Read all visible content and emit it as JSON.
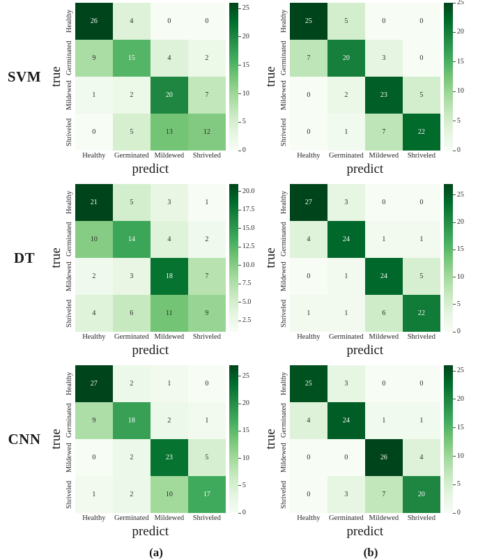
{
  "figure_background": "#ffffff",
  "row_labels": [
    "SVM",
    "DT",
    "CNN"
  ],
  "captions": [
    "(a)",
    "(b)"
  ],
  "axis": {
    "xlabel": "predict",
    "ylabel": "true"
  },
  "categories": [
    "Healthy",
    "Germinated",
    "Mildewed",
    "Shriveled"
  ],
  "colormap": {
    "name": "Greens",
    "stops": [
      "#f7fcf5",
      "#e5f5e0",
      "#c7e9c0",
      "#a1d99b",
      "#74c476",
      "#41ab5d",
      "#238b45",
      "#006d2c",
      "#00441b"
    ]
  },
  "chart_data": [
    {
      "type": "heatmap",
      "model": "SVM",
      "column": "a",
      "xlabel": "predict",
      "ylabel": "true",
      "x_categories": [
        "Healthy",
        "Germinated",
        "Mildewed",
        "Shriveled"
      ],
      "y_categories": [
        "Healthy",
        "Germinated",
        "Mildewed",
        "Shriveled"
      ],
      "matrix": [
        [
          26,
          4,
          0,
          0
        ],
        [
          9,
          15,
          4,
          2
        ],
        [
          1,
          2,
          20,
          7
        ],
        [
          0,
          5,
          13,
          12
        ]
      ],
      "colorbar_ticks": [
        "0",
        "5",
        "10",
        "15",
        "20",
        "25"
      ],
      "colormap": "Greens",
      "legend_position": "colorbar-right"
    },
    {
      "type": "heatmap",
      "model": "SVM",
      "column": "b",
      "xlabel": "predict",
      "ylabel": "true",
      "x_categories": [
        "Healthy",
        "Germinated",
        "Mildewed",
        "Shriveled"
      ],
      "y_categories": [
        "Healthy",
        "Germinated",
        "Mildewed",
        "Shriveled"
      ],
      "matrix": [
        [
          25,
          5,
          0,
          0
        ],
        [
          7,
          20,
          3,
          0
        ],
        [
          0,
          2,
          23,
          5
        ],
        [
          0,
          1,
          7,
          22
        ]
      ],
      "colorbar_ticks": [
        "0",
        "5",
        "10",
        "15",
        "20",
        "25"
      ],
      "colormap": "Greens",
      "legend_position": "colorbar-right"
    },
    {
      "type": "heatmap",
      "model": "DT",
      "column": "a",
      "xlabel": "predict",
      "ylabel": "true",
      "x_categories": [
        "Healthy",
        "Germinated",
        "Mildewed",
        "Shriveled"
      ],
      "y_categories": [
        "Healthy",
        "Germinated",
        "Mildewed",
        "Shriveled"
      ],
      "matrix": [
        [
          21,
          5,
          3,
          1
        ],
        [
          10,
          14,
          4,
          2
        ],
        [
          2,
          3,
          18,
          7
        ],
        [
          4,
          6,
          11,
          9
        ]
      ],
      "colorbar_ticks": [
        "2.5",
        "5.0",
        "7.5",
        "10.0",
        "12.5",
        "15.0",
        "17.5",
        "20.0"
      ],
      "colormap": "Greens",
      "legend_position": "colorbar-right"
    },
    {
      "type": "heatmap",
      "model": "DT",
      "column": "b",
      "xlabel": "predict",
      "ylabel": "true",
      "x_categories": [
        "Healthy",
        "Germinated",
        "Mildewed",
        "Shriveled"
      ],
      "y_categories": [
        "Healthy",
        "Germinated",
        "Mildewed",
        "Shriveled"
      ],
      "matrix": [
        [
          27,
          3,
          0,
          0
        ],
        [
          4,
          24,
          1,
          1
        ],
        [
          0,
          1,
          24,
          5
        ],
        [
          1,
          1,
          6,
          22
        ]
      ],
      "colorbar_ticks": [
        "0",
        "5",
        "10",
        "15",
        "20",
        "25"
      ],
      "colormap": "Greens",
      "legend_position": "colorbar-right"
    },
    {
      "type": "heatmap",
      "model": "CNN",
      "column": "a",
      "xlabel": "predict",
      "ylabel": "true",
      "x_categories": [
        "Healthy",
        "Germinated",
        "Mildewed",
        "Shriveled"
      ],
      "y_categories": [
        "Healthy",
        "Germinated",
        "Mildewed",
        "Shriveled"
      ],
      "matrix": [
        [
          27,
          2,
          1,
          0
        ],
        [
          9,
          18,
          2,
          1
        ],
        [
          0,
          2,
          23,
          5
        ],
        [
          1,
          2,
          10,
          17
        ]
      ],
      "colorbar_ticks": [
        "0",
        "5",
        "10",
        "15",
        "20",
        "25"
      ],
      "colormap": "Greens",
      "legend_position": "colorbar-right"
    },
    {
      "type": "heatmap",
      "model": "CNN",
      "column": "b",
      "xlabel": "predict",
      "ylabel": "true",
      "x_categories": [
        "Healthy",
        "Germinated",
        "Mildewed",
        "Shriveled"
      ],
      "y_categories": [
        "Healthy",
        "Germinated",
        "Mildewed",
        "Shriveled"
      ],
      "matrix": [
        [
          25,
          3,
          0,
          0
        ],
        [
          4,
          24,
          1,
          1
        ],
        [
          0,
          0,
          26,
          4
        ],
        [
          0,
          3,
          7,
          20
        ]
      ],
      "colorbar_ticks": [
        "0",
        "5",
        "10",
        "15",
        "20",
        "25"
      ],
      "colormap": "Greens",
      "legend_position": "colorbar-right"
    }
  ]
}
